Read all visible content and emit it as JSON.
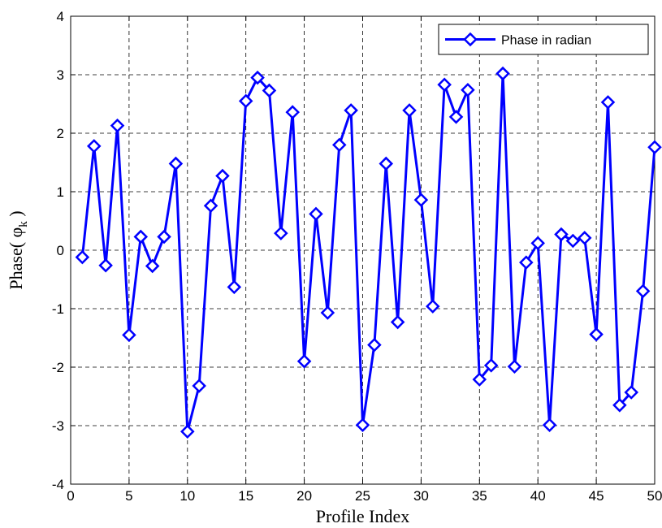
{
  "chart_data": {
    "type": "line",
    "xlabel": "Profile Index",
    "ylabel_prefix": "Phase( ",
    "ylabel_symbol": "φ",
    "ylabel_subscript": "k",
    "ylabel_suffix": " )",
    "xlim": [
      0,
      50
    ],
    "ylim": [
      -4,
      4
    ],
    "xticks": [
      0,
      5,
      10,
      15,
      20,
      25,
      30,
      35,
      40,
      45,
      50
    ],
    "yticks": [
      -4,
      -3,
      -2,
      -1,
      0,
      1,
      2,
      3,
      4
    ],
    "grid": true,
    "legend_position": "top-right",
    "series": [
      {
        "name": "Phase in radian",
        "color": "#0000ff",
        "marker": "diamond",
        "x": [
          1,
          2,
          3,
          4,
          5,
          6,
          7,
          8,
          9,
          10,
          11,
          12,
          13,
          14,
          15,
          16,
          17,
          18,
          19,
          20,
          21,
          22,
          23,
          24,
          25,
          26,
          27,
          28,
          29,
          30,
          31,
          32,
          33,
          34,
          35,
          36,
          37,
          38,
          39,
          40,
          41,
          42,
          43,
          44,
          45,
          46,
          47,
          48,
          49,
          50
        ],
        "values": [
          -0.12,
          1.78,
          -0.26,
          2.13,
          -1.45,
          0.23,
          -0.27,
          0.23,
          1.48,
          -3.1,
          -2.32,
          0.76,
          1.27,
          -0.63,
          2.55,
          2.95,
          2.73,
          0.29,
          2.36,
          -1.9,
          0.62,
          -1.07,
          1.8,
          2.39,
          -2.99,
          -1.62,
          1.48,
          -1.23,
          2.39,
          0.86,
          -0.96,
          2.83,
          2.28,
          2.74,
          -2.21,
          -1.97,
          3.02,
          -1.99,
          -0.21,
          0.12,
          -2.99,
          0.27,
          0.16,
          0.21,
          -1.44,
          2.53,
          -2.65,
          -2.43,
          -0.7,
          1.76
        ]
      }
    ]
  }
}
